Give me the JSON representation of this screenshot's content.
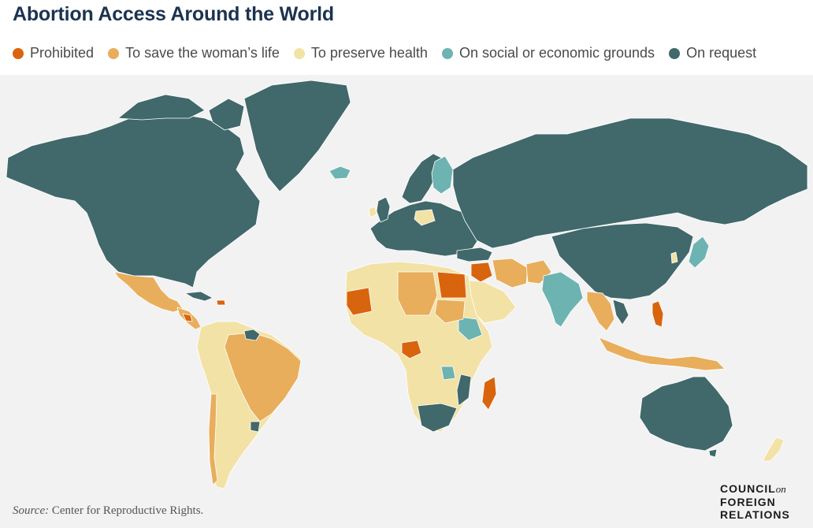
{
  "title": "Abortion Access Around the World",
  "legend": [
    {
      "label": "Prohibited",
      "color": "#d9640e"
    },
    {
      "label": "To save the woman’s life",
      "color": "#e8ae5c"
    },
    {
      "label": "To preserve health",
      "color": "#f3e2a6"
    },
    {
      "label": "On social or economic grounds",
      "color": "#6db3b2"
    },
    {
      "label": "On request",
      "color": "#41686a"
    }
  ],
  "source_label": "Source:",
  "source_text": "Center for Reproductive Rights.",
  "logo": {
    "line1": "COUNCIL",
    "on": "on",
    "line2": "FOREIGN",
    "line3": "RELATIONS"
  },
  "colors": {
    "ocean": "#f2f2f2",
    "border": "#ffffff",
    "nodata": "#d8d8d8"
  }
}
